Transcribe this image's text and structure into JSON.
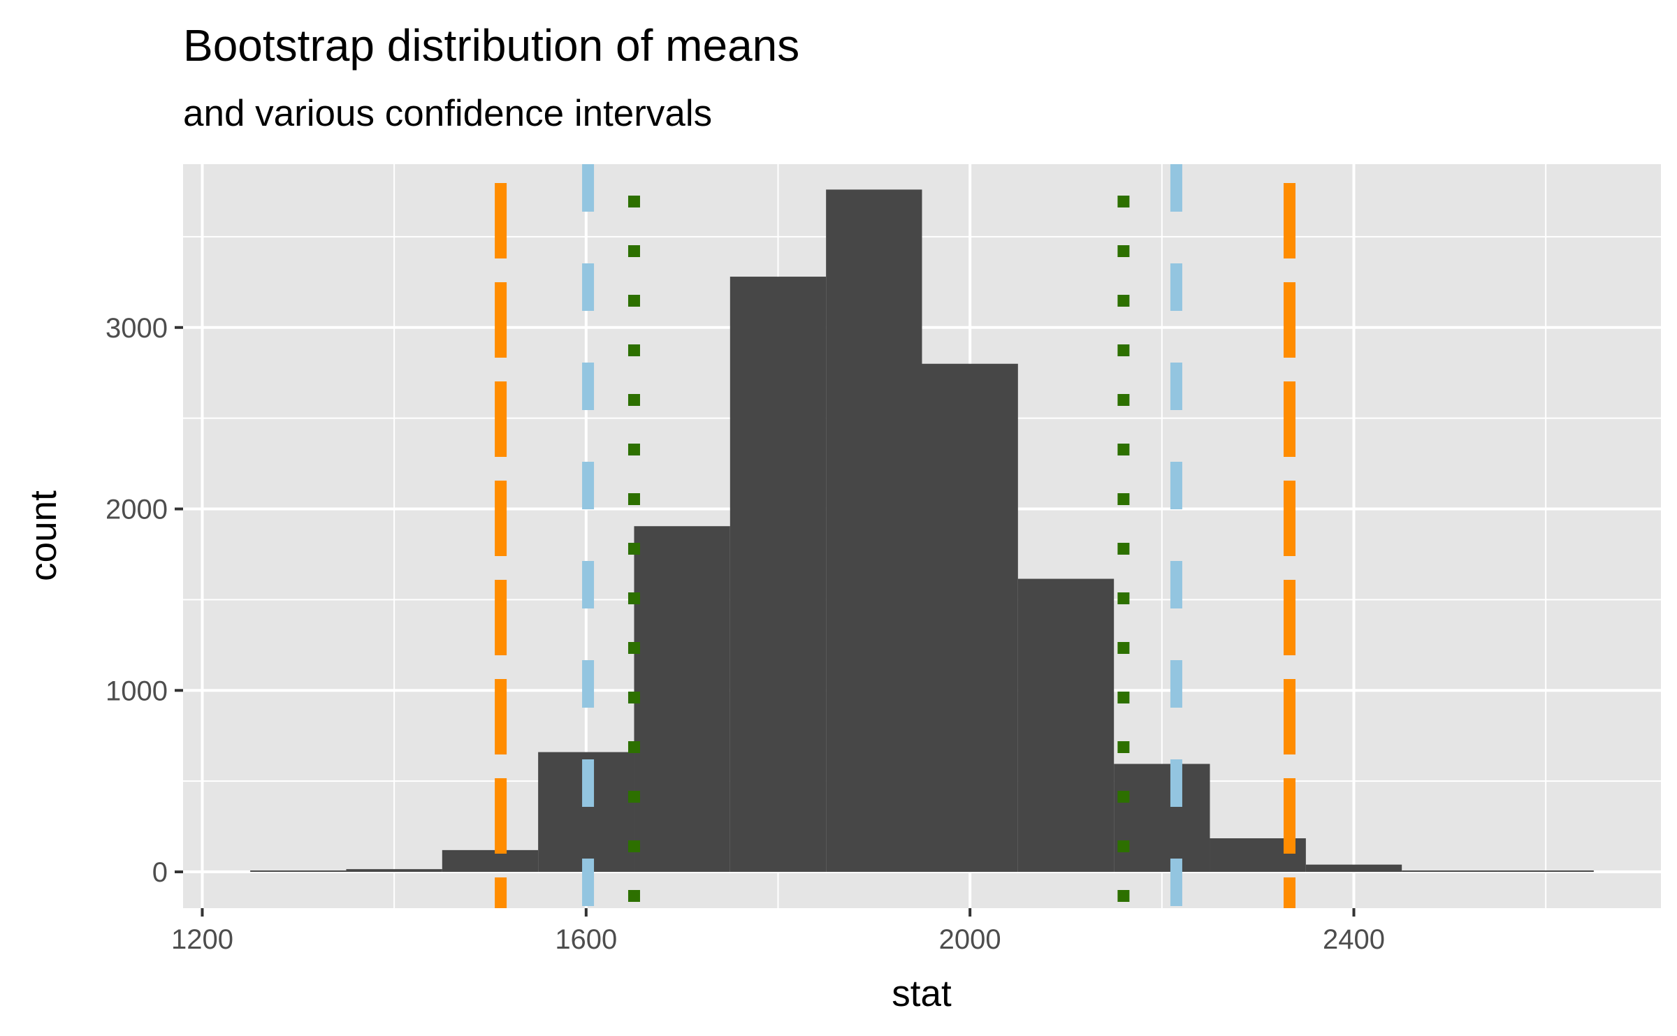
{
  "chart_data": {
    "type": "bar",
    "title": "Bootstrap distribution of means",
    "subtitle": "and various confidence intervals",
    "xlabel": "stat",
    "ylabel": "count",
    "xlim": [
      1180,
      2720
    ],
    "ylim": [
      -200,
      3900
    ],
    "x_ticks": [
      1200,
      1600,
      2000,
      2400
    ],
    "y_ticks": [
      0,
      1000,
      2000,
      3000
    ],
    "grid": true,
    "bins": [
      {
        "x0": 1250,
        "x1": 1350,
        "count": 3
      },
      {
        "x0": 1350,
        "x1": 1450,
        "count": 15
      },
      {
        "x0": 1450,
        "x1": 1550,
        "count": 120
      },
      {
        "x0": 1550,
        "x1": 1650,
        "count": 660
      },
      {
        "x0": 1650,
        "x1": 1750,
        "count": 1905
      },
      {
        "x0": 1750,
        "x1": 1850,
        "count": 3280
      },
      {
        "x0": 1850,
        "x1": 1950,
        "count": 3760
      },
      {
        "x0": 1950,
        "x1": 2050,
        "count": 2800
      },
      {
        "x0": 2050,
        "x1": 2150,
        "count": 1615
      },
      {
        "x0": 2150,
        "x1": 2250,
        "count": 595
      },
      {
        "x0": 2250,
        "x1": 2350,
        "count": 185
      },
      {
        "x0": 2350,
        "x1": 2450,
        "count": 40
      },
      {
        "x0": 2450,
        "x1": 2550,
        "count": 6
      },
      {
        "x0": 2550,
        "x1": 2650,
        "count": 2
      }
    ],
    "bar_color": "#474747",
    "intervals": [
      {
        "values": [
          1511,
          2333
        ],
        "color": "#FF8C00",
        "style": "dashed-long"
      },
      {
        "values": [
          1602,
          2215
        ],
        "color": "#93C5E0",
        "style": "dashed"
      },
      {
        "values": [
          1650,
          2160
        ],
        "color": "#2D7000",
        "style": "dotted"
      }
    ]
  }
}
